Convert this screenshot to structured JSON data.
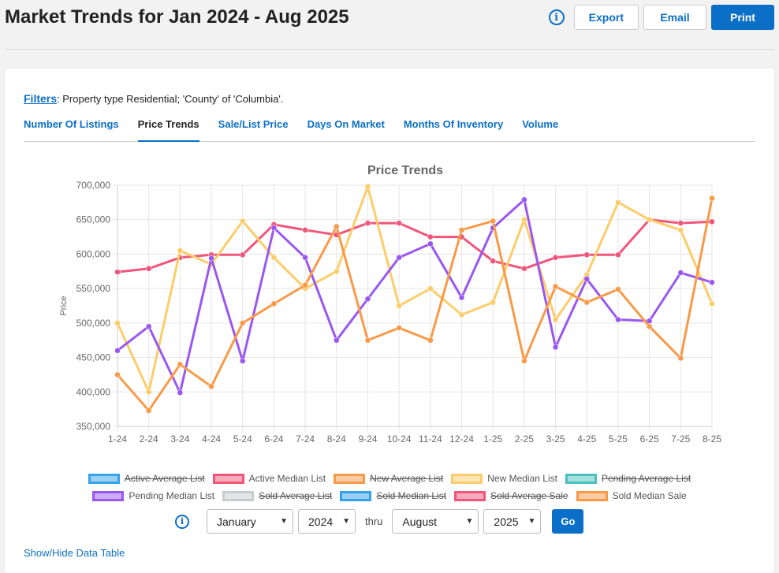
{
  "header": {
    "title": "Market Trends for Jan 2024 - Aug 2025",
    "export_label": "Export",
    "email_label": "Email",
    "print_label": "Print",
    "info_glyph": "i"
  },
  "filters": {
    "link_label": "Filters",
    "text": ": Property type Residential; 'County' of 'Columbia'."
  },
  "tabs": [
    {
      "label": "Number Of Listings",
      "active": false
    },
    {
      "label": "Price Trends",
      "active": true
    },
    {
      "label": "Sale/List Price",
      "active": false
    },
    {
      "label": "Days On Market",
      "active": false
    },
    {
      "label": "Months Of Inventory",
      "active": false
    },
    {
      "label": "Volume",
      "active": false
    }
  ],
  "colors": {
    "accent": "#0b6fc8",
    "grid": "#e5e5e5"
  },
  "chart_data": {
    "type": "line",
    "title": "Price Trends",
    "xlabel": "",
    "ylabel": "Price",
    "ylim": [
      350000,
      700000
    ],
    "yticks": [
      350000,
      400000,
      450000,
      500000,
      550000,
      600000,
      650000,
      700000
    ],
    "ytick_labels": [
      "350,000",
      "400,000",
      "450,000",
      "500,000",
      "550,000",
      "600,000",
      "650,000",
      "700,000"
    ],
    "grid": true,
    "categories": [
      "1-24",
      "2-24",
      "3-24",
      "4-24",
      "5-24",
      "6-24",
      "7-24",
      "8-24",
      "9-24",
      "10-24",
      "11-24",
      "12-24",
      "1-25",
      "2-25",
      "3-25",
      "4-25",
      "5-25",
      "6-25",
      "7-25",
      "8-25"
    ],
    "series": [
      {
        "name": "Active Median List",
        "color": "#f0567a",
        "values": [
          574000,
          579000,
          595000,
          599000,
          599000,
          643000,
          635000,
          628000,
          645000,
          645000,
          625000,
          625000,
          590000,
          579000,
          595000,
          599000,
          599000,
          650000,
          645000,
          647000
        ]
      },
      {
        "name": "New Median List",
        "color": "#fbcd6a",
        "values": [
          500000,
          400000,
          605000,
          585000,
          648000,
          595000,
          550000,
          575000,
          698000,
          525000,
          550000,
          512000,
          530000,
          650000,
          505000,
          570000,
          675000,
          650000,
          635000,
          528000
        ]
      },
      {
        "name": "Pending Median List",
        "color": "#9a57f0",
        "values": [
          460000,
          495000,
          399000,
          594000,
          445000,
          638000,
          595000,
          475000,
          535000,
          595000,
          615000,
          537000,
          638000,
          679000,
          465000,
          564000,
          505000,
          503000,
          573000,
          559000
        ]
      },
      {
        "name": "Sold Median Sale",
        "color": "#f89a48",
        "values": [
          425000,
          373000,
          440000,
          408000,
          500000,
          528000,
          555000,
          640000,
          475000,
          493000,
          475000,
          635000,
          648000,
          445000,
          553000,
          530000,
          549000,
          495000,
          449000,
          681000
        ]
      }
    ],
    "legend": [
      {
        "label": "Active Average List",
        "color": "#36a2eb",
        "hidden": true
      },
      {
        "label": "Active Median List",
        "color": "#f0567a",
        "hidden": false
      },
      {
        "label": "New Average List",
        "color": "#f89a48",
        "hidden": true
      },
      {
        "label": "New Median List",
        "color": "#fbcd6a",
        "hidden": false
      },
      {
        "label": "Pending Average List",
        "color": "#4bc0c0",
        "hidden": true
      },
      {
        "label": "Pending Median List",
        "color": "#9a57f0",
        "hidden": false
      },
      {
        "label": "Sold Average List",
        "color": "#c9cbcf",
        "hidden": true
      },
      {
        "label": "Sold Median List",
        "color": "#36a2eb",
        "hidden": true
      },
      {
        "label": "Sold Average Sale",
        "color": "#f0567a",
        "hidden": true
      },
      {
        "label": "Sold Median Sale",
        "color": "#f89a48",
        "hidden": false
      }
    ]
  },
  "range": {
    "info_glyph": "i",
    "from_month": "January",
    "from_year": "2024",
    "thru_label": "thru",
    "to_month": "August",
    "to_year": "2025",
    "go_label": "Go",
    "chevron": "▼"
  },
  "footer": {
    "data_table_link": "Show/Hide Data Table"
  }
}
